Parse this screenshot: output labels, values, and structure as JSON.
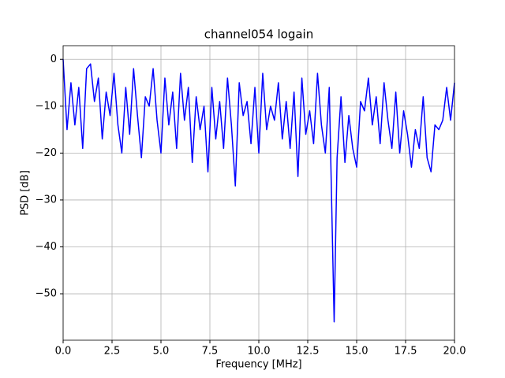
{
  "chart_data": {
    "type": "line",
    "title": "channel054 logain",
    "x_label": "Frequency [MHz]",
    "y_label": "PSD [dB]",
    "x": [
      0,
      0.2,
      0.4,
      0.6,
      0.8,
      1.0,
      1.2,
      1.4,
      1.6,
      1.8,
      2.0,
      2.2,
      2.4,
      2.6,
      2.8,
      3.0,
      3.2,
      3.4,
      3.6,
      3.8,
      4.0,
      4.2,
      4.4,
      4.6,
      4.8,
      5.0,
      5.2,
      5.4,
      5.6,
      5.8,
      6.0,
      6.2,
      6.4,
      6.6,
      6.8,
      7.0,
      7.2,
      7.4,
      7.6,
      7.8,
      8.0,
      8.2,
      8.4,
      8.6,
      8.8,
      9.0,
      9.2,
      9.4,
      9.6,
      9.8,
      10.0,
      10.2,
      10.4,
      10.6,
      10.8,
      11.0,
      11.2,
      11.4,
      11.6,
      11.8,
      12.0,
      12.2,
      12.4,
      12.6,
      12.8,
      13.0,
      13.2,
      13.4,
      13.6,
      13.85,
      14.0,
      14.2,
      14.4,
      14.6,
      14.8,
      15.0,
      15.2,
      15.4,
      15.6,
      15.8,
      16.0,
      16.2,
      16.4,
      16.6,
      16.8,
      17.0,
      17.2,
      17.4,
      17.6,
      17.8,
      18.0,
      18.2,
      18.4,
      18.6,
      18.8,
      19.0,
      19.2,
      19.4,
      19.6,
      19.8,
      20.0
    ],
    "series": [
      {
        "name": "PSD",
        "color": "#0000ff",
        "values": [
          0,
          -15,
          -5,
          -14,
          -6,
          -19,
          -2,
          -1,
          -9,
          -4,
          -17,
          -7,
          -12,
          -3,
          -14,
          -20,
          -6,
          -16,
          -2,
          -12,
          -21,
          -8,
          -10,
          -2,
          -13,
          -20,
          -4,
          -14,
          -7,
          -19,
          -3,
          -13,
          -6,
          -22,
          -8,
          -15,
          -10,
          -24,
          -6,
          -17,
          -9,
          -19,
          -4,
          -14,
          -27,
          -5,
          -12,
          -9,
          -18,
          -6,
          -20,
          -3,
          -15,
          -10,
          -13,
          -5,
          -17,
          -9,
          -19,
          -7,
          -25,
          -4,
          -16,
          -11,
          -18,
          -3,
          -14,
          -20,
          -6,
          -56,
          -21,
          -8,
          -22,
          -12,
          -19,
          -23,
          -9,
          -11,
          -4,
          -14,
          -8,
          -18,
          -5,
          -13,
          -19,
          -7,
          -20,
          -11,
          -16,
          -23,
          -15,
          -19,
          -8,
          -21,
          -24,
          -14,
          -15,
          -13,
          -6,
          -13,
          -5
        ]
      }
    ],
    "xlim": [
      0,
      20
    ],
    "ylim": [
      -59.9,
      2.9
    ],
    "xticks": [
      {
        "value": 0,
        "label": "0.0"
      },
      2.5,
      {
        "value": 5,
        "label": "5.0"
      },
      7.5,
      {
        "value": 10,
        "label": "10.0"
      },
      12.5,
      {
        "value": 15,
        "label": "15.0"
      },
      17.5,
      {
        "value": 20,
        "label": "20.0"
      }
    ],
    "yticks": [
      {
        "value": -50,
        "label": "−50"
      },
      {
        "value": -40,
        "label": "−40"
      },
      {
        "value": -30,
        "label": "−30"
      },
      {
        "value": -20,
        "label": "−20"
      },
      {
        "value": -10,
        "label": "−10"
      },
      0
    ],
    "grid": true
  }
}
